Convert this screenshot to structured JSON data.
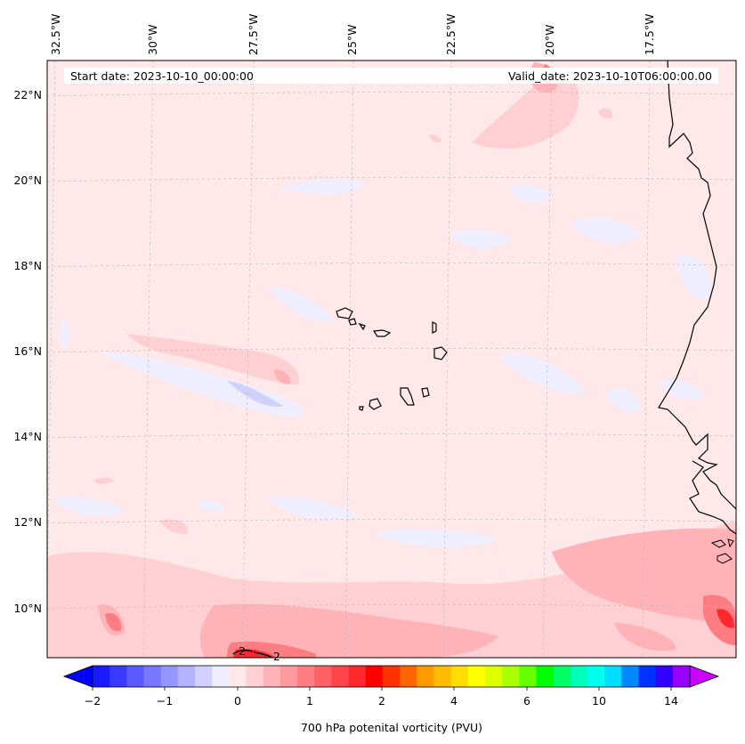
{
  "header": {
    "start_date": "Start date: 2023-10-10_00:00:00",
    "valid_date": "Valid_date: 2023-10-10T06:00:00.00"
  },
  "map": {
    "longitude_labels": [
      "32.5°W",
      "30°W",
      "27.5°W",
      "25°W",
      "22.5°W",
      "20°W",
      "17.5°W"
    ],
    "latitude_labels": [
      "22°N",
      "20°N",
      "18°N",
      "16°N",
      "14°N",
      "12°N",
      "10°N"
    ],
    "contour_labels": [
      "2",
      "2"
    ],
    "background_color": "#ffe8ea"
  },
  "colorbar": {
    "title": "700 hPa potenital vorticity (PVU)",
    "tick_labels": [
      "−2",
      "−1",
      "0",
      "1",
      "2",
      "4",
      "6",
      "10",
      "14"
    ],
    "extend_low_color": "#0000ff",
    "extend_high_color": "#cc00ff",
    "colors": [
      "#1a1aff",
      "#3a3aff",
      "#5959ff",
      "#7777ff",
      "#9595ff",
      "#b3b3ff",
      "#d1d1ff",
      "#eeeeff",
      "#ffe8ea",
      "#ffd0d3",
      "#ffb3b7",
      "#ff9a9e",
      "#ff7d82",
      "#ff6166",
      "#ff4549",
      "#ff282c",
      "#ff0000",
      "#ff3300",
      "#ff6600",
      "#ff9900",
      "#ffbb00",
      "#ffdd00",
      "#ffff00",
      "#ddff00",
      "#aaff00",
      "#66ff00",
      "#00ff00",
      "#00ff66",
      "#00ffbb",
      "#00ffee",
      "#00ddff",
      "#0088ff",
      "#0033ff",
      "#3300ff",
      "#9900ff"
    ]
  }
}
